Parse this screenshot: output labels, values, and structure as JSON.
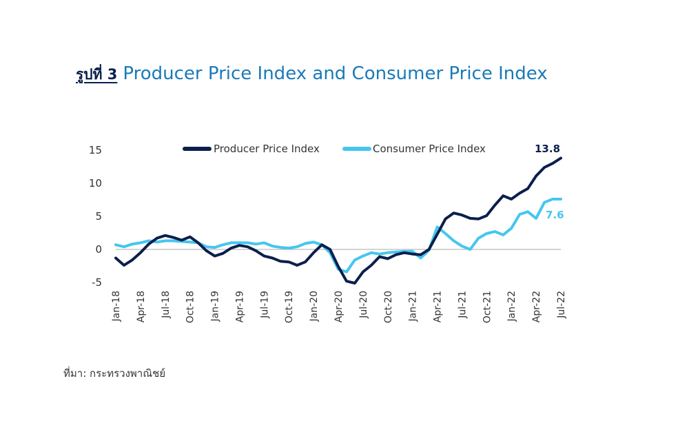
{
  "header": {
    "figure_label": "รูปที่ 3",
    "title": "Producer Price Index and Consumer Price Index"
  },
  "source": "ที่มา: กระทรวงพาณิชย์",
  "colors": {
    "ppi": "#0b1f4d",
    "cpi": "#45c6ef",
    "zero_line": "#aaaaaa"
  },
  "chart_data": {
    "type": "line",
    "title": "Producer Price Index and Consumer Price Index",
    "xlabel": "",
    "ylabel": "",
    "ylim": [
      -6,
      16
    ],
    "yticks": [
      15,
      10,
      5,
      0,
      -5
    ],
    "grid": false,
    "legend": "top",
    "x": [
      "Jan-18",
      "Feb-18",
      "Mar-18",
      "Apr-18",
      "May-18",
      "Jun-18",
      "Jul-18",
      "Aug-18",
      "Sep-18",
      "Oct-18",
      "Nov-18",
      "Dec-18",
      "Jan-19",
      "Feb-19",
      "Mar-19",
      "Apr-19",
      "May-19",
      "Jun-19",
      "Jul-19",
      "Aug-19",
      "Sep-19",
      "Oct-19",
      "Nov-19",
      "Dec-19",
      "Jan-20",
      "Feb-20",
      "Mar-20",
      "Apr-20",
      "May-20",
      "Jun-20",
      "Jul-20",
      "Aug-20",
      "Sep-20",
      "Oct-20",
      "Nov-20",
      "Dec-20",
      "Jan-21",
      "Feb-21",
      "Mar-21",
      "Apr-21",
      "May-21",
      "Jun-21",
      "Jul-21",
      "Aug-21",
      "Sep-21",
      "Oct-21",
      "Nov-21",
      "Dec-21",
      "Jan-22",
      "Feb-22",
      "Mar-22",
      "Apr-22",
      "May-22",
      "Jun-22",
      "Jul-22"
    ],
    "xtick_labels": [
      "Jan-18",
      "Apr-18",
      "Jul-18",
      "Oct-18",
      "Jan-19",
      "Apr-19",
      "Jul-19",
      "Oct-19",
      "Jan-20",
      "Apr-20",
      "Jul-20",
      "Oct-20",
      "Jan-21",
      "Apr-21",
      "Jul-21",
      "Oct-21",
      "Jan-22",
      "Apr-22",
      "Jul-22"
    ],
    "series": [
      {
        "name": "Producer Price Index",
        "values": [
          -1.3,
          -2.4,
          -1.6,
          -0.5,
          0.8,
          1.7,
          2.1,
          1.8,
          1.4,
          1.9,
          1.0,
          -0.2,
          -1.0,
          -0.6,
          0.2,
          0.6,
          0.4,
          -0.2,
          -1.0,
          -1.3,
          -1.8,
          -1.9,
          -2.4,
          -1.9,
          -0.5,
          0.7,
          0.0,
          -2.6,
          -4.8,
          -5.1,
          -3.4,
          -2.4,
          -1.1,
          -1.4,
          -0.8,
          -0.5,
          -0.7,
          -0.8,
          0.0,
          2.3,
          4.6,
          5.5,
          5.2,
          4.7,
          4.6,
          5.1,
          6.7,
          8.1,
          7.6,
          8.5,
          9.2,
          11.1,
          12.4,
          13.0,
          13.8
        ]
      },
      {
        "name": "Consumer Price Index",
        "values": [
          0.7,
          0.4,
          0.8,
          1.0,
          1.3,
          1.1,
          1.3,
          1.3,
          1.2,
          1.1,
          1.0,
          0.4,
          0.3,
          0.7,
          1.0,
          1.0,
          1.0,
          0.8,
          1.0,
          0.5,
          0.3,
          0.2,
          0.4,
          0.9,
          1.1,
          0.7,
          -0.5,
          -3.0,
          -3.4,
          -1.6,
          -1.0,
          -0.5,
          -0.7,
          -0.5,
          -0.4,
          -0.3,
          -0.3,
          -1.3,
          -0.1,
          3.4,
          2.4,
          1.3,
          0.5,
          0.0,
          1.7,
          2.4,
          2.7,
          2.2,
          3.2,
          5.3,
          5.7,
          4.7,
          7.1,
          7.6,
          7.6
        ]
      }
    ],
    "annotations": [
      {
        "series": "Producer Price Index",
        "text": "13.8"
      },
      {
        "series": "Consumer Price Index",
        "text": "7.6"
      }
    ]
  }
}
